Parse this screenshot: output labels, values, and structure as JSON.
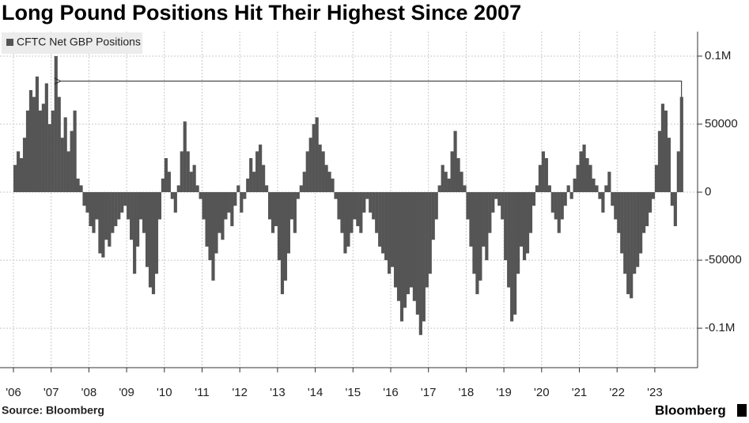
{
  "chart_data": {
    "type": "bar",
    "title": "Long Pound Positions Hit Their Highest Since 2007",
    "source": "Source: Bloomberg",
    "brand": "Bloomberg",
    "categories": [
      "'06",
      null,
      null,
      null,
      null,
      null,
      null,
      null,
      null,
      null,
      null,
      null,
      "'07",
      null,
      null,
      null,
      null,
      null,
      null,
      null,
      null,
      null,
      null,
      null,
      "'08",
      null,
      null,
      null,
      null,
      null,
      null,
      null,
      null,
      null,
      null,
      null,
      "'09",
      null,
      null,
      null,
      null,
      null,
      null,
      null,
      null,
      null,
      null,
      null,
      "'10",
      null,
      null,
      null,
      null,
      null,
      null,
      null,
      null,
      null,
      null,
      null,
      "'11",
      null,
      null,
      null,
      null,
      null,
      null,
      null,
      null,
      null,
      null,
      null,
      "'12",
      null,
      null,
      null,
      null,
      null,
      null,
      null,
      null,
      null,
      null,
      null,
      "'13",
      null,
      null,
      null,
      null,
      null,
      null,
      null,
      null,
      null,
      null,
      null,
      "'14",
      null,
      null,
      null,
      null,
      null,
      null,
      null,
      null,
      null,
      null,
      null,
      "'15",
      null,
      null,
      null,
      null,
      null,
      null,
      null,
      null,
      null,
      null,
      null,
      "'16",
      null,
      null,
      null,
      null,
      null,
      null,
      null,
      null,
      null,
      null,
      null,
      "'17",
      null,
      null,
      null,
      null,
      null,
      null,
      null,
      null,
      null,
      null,
      null,
      "'18",
      null,
      null,
      null,
      null,
      null,
      null,
      null,
      null,
      null,
      null,
      null,
      "'19",
      null,
      null,
      null,
      null,
      null,
      null,
      null,
      null,
      null,
      null,
      null,
      "'20",
      null,
      null,
      null,
      null,
      null,
      null,
      null,
      null,
      null,
      null,
      null,
      "'21",
      null,
      null,
      null,
      null,
      null,
      null,
      null,
      null,
      null,
      null,
      null,
      "'22",
      null,
      null,
      null,
      null,
      null,
      null,
      null,
      null,
      null,
      null,
      null,
      "'23",
      null,
      null,
      null,
      null,
      null,
      null,
      null,
      null
    ],
    "series": [
      {
        "name": "CFTC Net GBP Positions",
        "color": "#555555",
        "values": [
          20000,
          30000,
          25000,
          40000,
          60000,
          75000,
          70000,
          85000,
          60000,
          65000,
          80000,
          50000,
          60000,
          100000,
          70000,
          40000,
          55000,
          30000,
          45000,
          60000,
          10000,
          5000,
          -10000,
          -15000,
          -25000,
          -30000,
          -20000,
          -45000,
          -48000,
          -35000,
          -40000,
          -30000,
          -25000,
          -20000,
          -15000,
          -10000,
          -20000,
          -35000,
          -60000,
          -40000,
          -20000,
          -30000,
          -55000,
          -70000,
          -75000,
          -60000,
          -20000,
          10000,
          25000,
          15000,
          -5000,
          -15000,
          5000,
          30000,
          52000,
          30000,
          15000,
          20000,
          5000,
          -5000,
          -20000,
          -40000,
          -50000,
          -65000,
          -45000,
          -30000,
          -35000,
          -20000,
          -15000,
          -25000,
          -10000,
          5000,
          -15000,
          -5000,
          10000,
          25000,
          15000,
          30000,
          35000,
          20000,
          5000,
          -20000,
          -30000,
          -25000,
          -50000,
          -75000,
          -65000,
          -45000,
          -20000,
          -30000,
          -5000,
          5000,
          15000,
          30000,
          40000,
          50000,
          55000,
          35000,
          30000,
          20000,
          15000,
          10000,
          -5000,
          -20000,
          -30000,
          -45000,
          -40000,
          -30000,
          -20000,
          -25000,
          -30000,
          -15000,
          -5000,
          -15000,
          -20000,
          -30000,
          -40000,
          -45000,
          -50000,
          -60000,
          -55000,
          -70000,
          -80000,
          -95000,
          -85000,
          -75000,
          -70000,
          -80000,
          -90000,
          -105000,
          -95000,
          -70000,
          -60000,
          -35000,
          -20000,
          5000,
          20000,
          15000,
          10000,
          30000,
          45000,
          25000,
          15000,
          5000,
          -20000,
          -40000,
          -60000,
          -75000,
          -65000,
          -40000,
          -50000,
          -30000,
          -15000,
          -5000,
          -10000,
          -20000,
          -50000,
          -70000,
          -95000,
          -90000,
          -60000,
          -40000,
          -50000,
          -45000,
          -30000,
          -10000,
          5000,
          20000,
          30000,
          25000,
          5000,
          -15000,
          -20000,
          -30000,
          -20000,
          -10000,
          5000,
          -5000,
          10000,
          20000,
          30000,
          35000,
          25000,
          20000,
          10000,
          5000,
          -5000,
          -15000,
          5000,
          15000,
          -10000,
          -20000,
          -30000,
          -45000,
          -60000,
          -75000,
          -78000,
          -60000,
          -55000,
          -45000,
          -30000,
          -25000,
          -15000,
          -5000,
          20000,
          45000,
          65000,
          60000,
          40000,
          -10000,
          -25000,
          30000,
          70000
        ]
      }
    ],
    "ylim": [
      -129000,
      118000
    ],
    "yticks": [
      {
        "value": 100000,
        "label": "0.1M"
      },
      50000,
      0,
      -50000,
      {
        "value": -100000,
        "label": "-0.1M"
      }
    ],
    "grid": true
  }
}
